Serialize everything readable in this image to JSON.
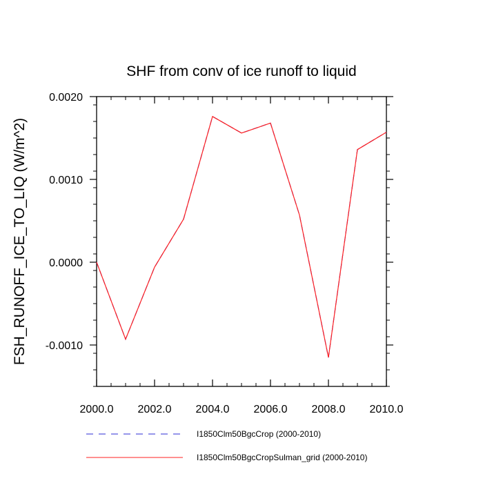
{
  "chart_data": {
    "type": "line",
    "title": "SHF from conv of ice runoff to liquid",
    "xlabel": "",
    "ylabel": "FSH_RUNOFF_ICE_TO_LIQ  (W/m^2)",
    "xlim": [
      2000,
      2010
    ],
    "ylim": [
      -0.0015,
      0.002
    ],
    "x": [
      2000,
      2001,
      2002,
      2003,
      2004,
      2005,
      2006,
      2007,
      2008,
      2009,
      2010
    ],
    "x_ticks": [
      2000,
      2002,
      2004,
      2006,
      2008,
      2010
    ],
    "x_tick_labels": [
      "2000.0",
      "2002.0",
      "2004.0",
      "2006.0",
      "2008.0",
      "2010.0"
    ],
    "y_ticks": [
      -0.001,
      0.0,
      0.001,
      0.002
    ],
    "y_tick_labels": [
      "-0.0010",
      "0.0000",
      "0.0010",
      "0.0020"
    ],
    "grid": false,
    "legend_position": "bottom",
    "series": [
      {
        "name": "I1850Clm50BgcCrop (2000-2010)",
        "color": "#2b2bd6",
        "dash": true,
        "values": [
          0.0,
          -0.00093,
          -6e-05,
          0.00052,
          0.00176,
          0.00156,
          0.00168,
          0.00057,
          -0.00115,
          0.00136,
          0.00157
        ]
      },
      {
        "name": "I1850Clm50BgcCropSulman_grid (2000-2010)",
        "color": "#ff2020",
        "dash": false,
        "values": [
          0.0,
          -0.00093,
          -6e-05,
          0.00052,
          0.00176,
          0.00156,
          0.00168,
          0.00057,
          -0.00115,
          0.00136,
          0.00157
        ]
      }
    ]
  }
}
